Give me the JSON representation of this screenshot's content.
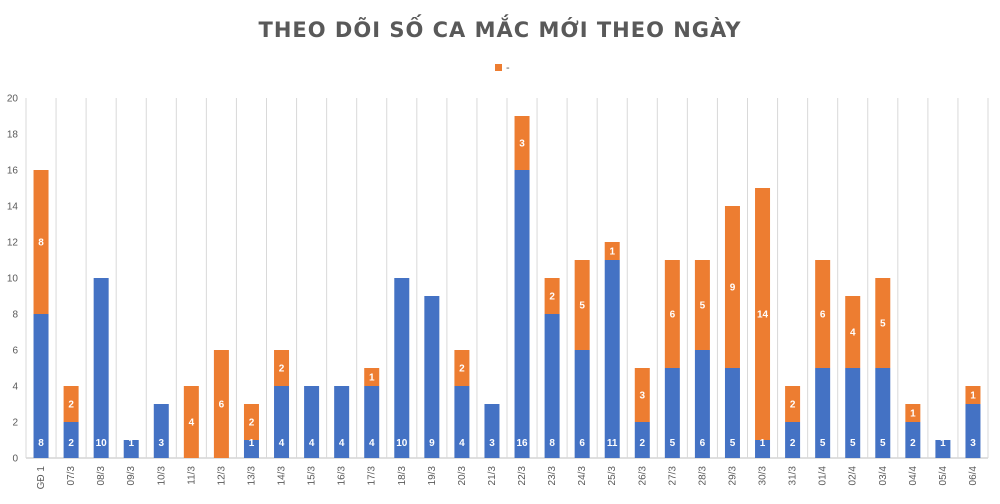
{
  "chart_data": {
    "type": "bar",
    "stacked": true,
    "title": "THEO DÕI SỐ CA MẮC MỚI THEO NGÀY",
    "legend": {
      "placement": "top-center",
      "entries": [
        "-"
      ]
    },
    "ylim": [
      0,
      20
    ],
    "yticks": [
      0,
      2,
      4,
      6,
      8,
      10,
      12,
      14,
      16,
      18,
      20
    ],
    "grid": true,
    "categories": [
      "GĐ 1",
      "07/3",
      "08/3",
      "09/3",
      "10/3",
      "11/3",
      "12/3",
      "13/3",
      "14/3",
      "15/3",
      "16/3",
      "17/3",
      "18/3",
      "19/3",
      "20/3",
      "21/3",
      "22/3",
      "23/3",
      "24/3",
      "25/3",
      "26/3",
      "27/3",
      "28/3",
      "29/3",
      "30/3",
      "31/3",
      "01/4",
      "02/4",
      "03/4",
      "04/4",
      "05/4",
      "06/4"
    ],
    "series": [
      {
        "color": "#4472c4",
        "values": [
          8,
          2,
          10,
          1,
          3,
          0,
          0,
          1,
          4,
          4,
          4,
          4,
          10,
          9,
          4,
          3,
          16,
          8,
          6,
          11,
          2,
          5,
          6,
          5,
          1,
          2,
          5,
          5,
          5,
          2,
          1,
          3
        ]
      },
      {
        "color": "#ed7d31",
        "values": [
          8,
          2,
          0,
          0,
          0,
          4,
          6,
          2,
          2,
          0,
          0,
          1,
          0,
          0,
          2,
          0,
          3,
          2,
          5,
          1,
          3,
          6,
          5,
          9,
          14,
          2,
          6,
          4,
          5,
          1,
          0,
          1
        ]
      }
    ]
  }
}
